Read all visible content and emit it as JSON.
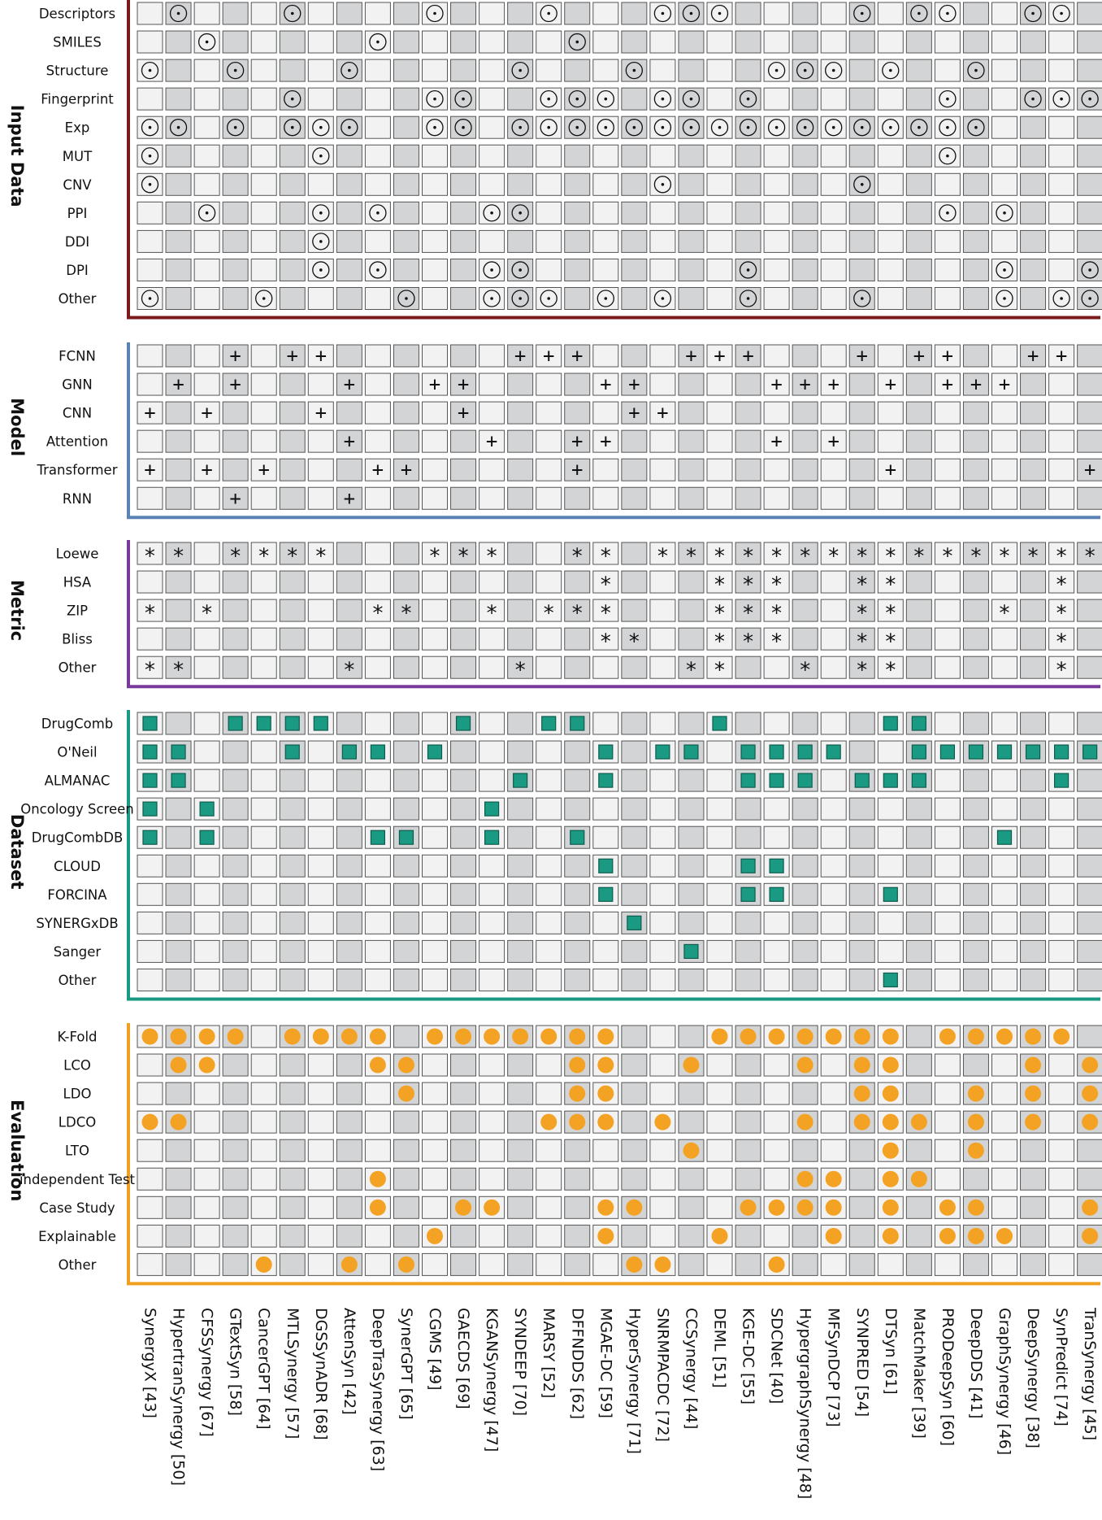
{
  "chart_data": {
    "type": "table",
    "methods": [
      "SynergyX [43]",
      "HypertranSynergy [50]",
      "CFSSynergy [67]",
      "GTextSyn [58]",
      "CancerGPT [64]",
      "MTLSynergy [57]",
      "DGSSynADR [68]",
      "AttenSyn [42]",
      "DeepTraSynergy [63]",
      "SynerGPT [65]",
      "CGMS [49]",
      "GAECDS [69]",
      "KGANSynergy [47]",
      "SYNDEEP [70]",
      "MARSY [52]",
      "DFFNDDS [62]",
      "MGAE-DC [59]",
      "HyperSynergy [71]",
      "SNRMPACDC [72]",
      "CCSynergy [44]",
      "DEML [51]",
      "KGE-DC [55]",
      "SDCNet [40]",
      "HypergraphSynergy [48]",
      "MFSynDCP [73]",
      "SYNPRED [54]",
      "DTSyn [61]",
      "MatchMaker [39]",
      "PRODeepSyn [60]",
      "DeepDDS [41]",
      "GraphSynergy [46]",
      "DeepSynergy [38]",
      "SynPredict [74]",
      "TranSynergy [45]"
    ],
    "groups": [
      {
        "name": "Input Data",
        "color": "#7b1a1a",
        "symbol": "odot",
        "rows": [
          {
            "label": "Descriptors",
            "marks": [
              1,
              5,
              10,
              14,
              18,
              19,
              20,
              25,
              27,
              28,
              31,
              32
            ]
          },
          {
            "label": "SMILES",
            "marks": [
              2,
              8,
              15
            ]
          },
          {
            "label": "Structure",
            "marks": [
              0,
              3,
              7,
              13,
              17,
              22,
              23,
              24,
              26,
              29
            ]
          },
          {
            "label": "Fingerprint",
            "marks": [
              5,
              10,
              11,
              14,
              15,
              16,
              18,
              19,
              21,
              28,
              31,
              32,
              33
            ]
          },
          {
            "label": "Exp",
            "marks": [
              0,
              1,
              3,
              5,
              6,
              7,
              10,
              11,
              13,
              14,
              15,
              16,
              17,
              18,
              19,
              20,
              21,
              22,
              23,
              24,
              25,
              26,
              27,
              28,
              29
            ]
          },
          {
            "label": "MUT",
            "marks": [
              0,
              6,
              28
            ]
          },
          {
            "label": "CNV",
            "marks": [
              0,
              18,
              25
            ]
          },
          {
            "label": "PPI",
            "marks": [
              2,
              6,
              8,
              12,
              13,
              28,
              30
            ]
          },
          {
            "label": "DDI",
            "marks": [
              6
            ]
          },
          {
            "label": "DPI",
            "marks": [
              6,
              8,
              12,
              13,
              21,
              30,
              33
            ]
          },
          {
            "label": "Other",
            "marks": [
              0,
              4,
              9,
              12,
              13,
              14,
              16,
              18,
              21,
              25,
              30,
              32,
              33
            ]
          }
        ]
      },
      {
        "name": "Model",
        "color": "#5b82b4",
        "symbol": "plus",
        "rows": [
          {
            "label": "FCNN",
            "marks": [
              3,
              5,
              6,
              13,
              14,
              15,
              19,
              20,
              21,
              25,
              27,
              28,
              31,
              32
            ]
          },
          {
            "label": "GNN",
            "marks": [
              1,
              3,
              7,
              10,
              11,
              16,
              17,
              22,
              23,
              24,
              26,
              28,
              29,
              30
            ]
          },
          {
            "label": "CNN",
            "marks": [
              0,
              2,
              6,
              11,
              17,
              18
            ]
          },
          {
            "label": "Attention",
            "marks": [
              7,
              12,
              15,
              16,
              22,
              24
            ]
          },
          {
            "label": "Transformer",
            "marks": [
              0,
              2,
              4,
              8,
              9,
              15,
              26,
              33
            ]
          },
          {
            "label": "RNN",
            "marks": [
              3,
              7
            ]
          }
        ]
      },
      {
        "name": "Metric",
        "color": "#7a3a9c",
        "symbol": "star",
        "rows": [
          {
            "label": "Loewe",
            "marks": [
              0,
              1,
              3,
              4,
              5,
              6,
              10,
              11,
              12,
              15,
              16,
              18,
              19,
              20,
              21,
              22,
              23,
              24,
              25,
              26,
              27,
              28,
              29,
              30,
              31,
              32,
              33
            ]
          },
          {
            "label": "HSA",
            "marks": [
              16,
              20,
              21,
              22,
              25,
              26,
              32
            ]
          },
          {
            "label": "ZIP",
            "marks": [
              0,
              2,
              8,
              9,
              12,
              14,
              15,
              16,
              20,
              21,
              22,
              25,
              26,
              30,
              32
            ]
          },
          {
            "label": "Bliss",
            "marks": [
              16,
              17,
              20,
              21,
              22,
              25,
              26,
              32
            ]
          },
          {
            "label": "Other",
            "marks": [
              0,
              1,
              7,
              13,
              19,
              20,
              23,
              25,
              26,
              32
            ]
          }
        ]
      },
      {
        "name": "Dataset",
        "color": "#1a9a82",
        "symbol": "square",
        "rows": [
          {
            "label": "DrugComb",
            "marks": [
              0,
              3,
              4,
              5,
              6,
              11,
              14,
              15,
              20,
              26,
              27
            ]
          },
          {
            "label": "O'Neil",
            "marks": [
              0,
              1,
              5,
              7,
              8,
              10,
              16,
              18,
              19,
              21,
              22,
              23,
              24,
              27,
              28,
              29,
              30,
              31,
              32,
              33
            ]
          },
          {
            "label": "ALMANAC",
            "marks": [
              0,
              1,
              13,
              16,
              21,
              22,
              23,
              25,
              26,
              27,
              32
            ]
          },
          {
            "label": "Oncology Screen",
            "marks": [
              0,
              2,
              12
            ]
          },
          {
            "label": "DrugCombDB",
            "marks": [
              0,
              2,
              8,
              9,
              12,
              15,
              30
            ]
          },
          {
            "label": "CLOUD",
            "marks": [
              16,
              21,
              22
            ]
          },
          {
            "label": "FORCINA",
            "marks": [
              16,
              21,
              22,
              26
            ]
          },
          {
            "label": "SYNERGxDB",
            "marks": [
              17
            ]
          },
          {
            "label": "Sanger",
            "marks": [
              19
            ]
          },
          {
            "label": "Other",
            "marks": [
              26
            ]
          }
        ]
      },
      {
        "name": "Evaluation",
        "color": "#f0a020",
        "symbol": "dot",
        "rows": [
          {
            "label": "K-Fold",
            "marks": [
              0,
              1,
              2,
              3,
              5,
              6,
              7,
              8,
              10,
              11,
              12,
              13,
              14,
              15,
              16,
              20,
              21,
              22,
              23,
              24,
              25,
              26,
              28,
              29,
              30,
              31,
              32
            ]
          },
          {
            "label": "LCO",
            "marks": [
              1,
              2,
              8,
              9,
              15,
              16,
              19,
              23,
              25,
              26,
              31,
              33
            ]
          },
          {
            "label": "LDO",
            "marks": [
              9,
              15,
              16,
              25,
              26,
              29,
              31,
              33
            ]
          },
          {
            "label": "LDCO",
            "marks": [
              0,
              1,
              14,
              15,
              16,
              18,
              23,
              25,
              26,
              27,
              29,
              31,
              33
            ]
          },
          {
            "label": "LTO",
            "marks": [
              19,
              26,
              29
            ]
          },
          {
            "label": "independent Test",
            "marks": [
              8,
              23,
              24,
              26,
              27
            ]
          },
          {
            "label": "Case Study",
            "marks": [
              8,
              11,
              12,
              16,
              17,
              21,
              22,
              23,
              24,
              26,
              28,
              29,
              33
            ]
          },
          {
            "label": "Explainable",
            "marks": [
              10,
              16,
              20,
              24,
              26,
              28,
              29,
              30,
              33
            ]
          },
          {
            "label": "Other",
            "marks": [
              4,
              7,
              9,
              17,
              18,
              22
            ]
          }
        ]
      }
    ]
  },
  "colors": {
    "cell_light": "#f2f2f2",
    "cell_dark": "#d3d4d6",
    "cell_border": "#555555",
    "teal": "#1a9a82",
    "orange": "#f4a224"
  }
}
